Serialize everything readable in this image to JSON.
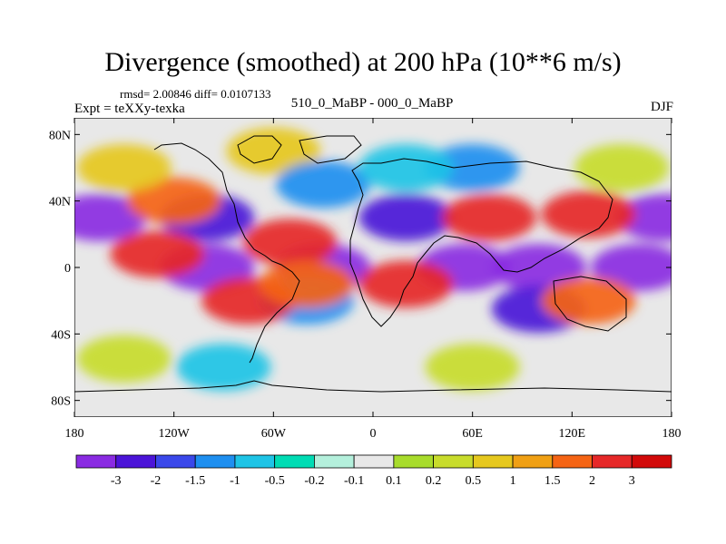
{
  "chart_data": {
    "type": "heatmap",
    "title": "Divergence (smoothed) at 200 hPa (10**6 m/s)",
    "stats_label": "rmsd= 2.00846 diff= 0.0107133",
    "experiment_label": "Expt = teXXy-texka",
    "comparison_label": "510_0_MaBP - 000_0_MaBP",
    "season_label": "DJF",
    "x_axis": {
      "range": [
        -180,
        180
      ],
      "tick_labels": [
        "180",
        "120W",
        "60W",
        "0",
        "60E",
        "120E",
        "180"
      ],
      "tick_values": [
        -180,
        -120,
        -60,
        0,
        60,
        120,
        180
      ]
    },
    "y_axis": {
      "range": [
        -90,
        90
      ],
      "tick_labels": [
        "80N",
        "40N",
        "0",
        "40S",
        "80S"
      ],
      "tick_values": [
        80,
        40,
        0,
        -40,
        -80
      ]
    },
    "colorbar": {
      "labels": [
        "-3",
        "-2",
        "-1.5",
        "-1",
        "-0.5",
        "-0.2",
        "-0.1",
        "0.1",
        "0.2",
        "0.5",
        "1",
        "1.5",
        "2",
        "3"
      ],
      "colors": [
        "#8a2be2",
        "#4b14d8",
        "#3a48ea",
        "#1e8ff0",
        "#1ec4e6",
        "#00dcb4",
        "#b4f0dc",
        "#e8e8e8",
        "#a8dc2c",
        "#c8dc2c",
        "#e6c81e",
        "#f0a014",
        "#f56414",
        "#e62828",
        "#d20a0a"
      ]
    },
    "field_features": [
      {
        "lon": -165,
        "lat": 30,
        "value": -3
      },
      {
        "lon": 175,
        "lat": 30,
        "value": -3
      },
      {
        "lon": -100,
        "lat": 0,
        "value": -3
      },
      {
        "lon": 55,
        "lat": 0,
        "value": -3
      },
      {
        "lon": 100,
        "lat": 0,
        "value": -3
      },
      {
        "lon": 160,
        "lat": 0,
        "value": -3
      },
      {
        "lon": -30,
        "lat": 0,
        "value": -3
      },
      {
        "lon": 20,
        "lat": 30,
        "value": -2
      },
      {
        "lon": -100,
        "lat": 30,
        "value": -2
      },
      {
        "lon": 100,
        "lat": -25,
        "value": -2
      },
      {
        "lon": -40,
        "lat": -20,
        "value": -1
      },
      {
        "lon": -130,
        "lat": 8,
        "value": 3
      },
      {
        "lon": -75,
        "lat": -20,
        "value": 3
      },
      {
        "lon": -50,
        "lat": 15,
        "value": 3
      },
      {
        "lon": 70,
        "lat": 30,
        "value": 3
      },
      {
        "lon": 20,
        "lat": -10,
        "value": 3
      },
      {
        "lon": 130,
        "lat": 32,
        "value": 3
      },
      {
        "lon": 130,
        "lat": -20,
        "value": 2
      },
      {
        "lon": -40,
        "lat": -10,
        "value": 2
      },
      {
        "lon": -120,
        "lat": 40,
        "value": 2
      },
      {
        "lon": 60,
        "lat": 60,
        "value": -1
      },
      {
        "lon": -60,
        "lat": 70,
        "value": 1
      },
      {
        "lon": -150,
        "lat": 60,
        "value": 1
      },
      {
        "lon": 150,
        "lat": 60,
        "value": 0.5
      },
      {
        "lon": -30,
        "lat": 50,
        "value": -1
      },
      {
        "lon": 20,
        "lat": 60,
        "value": -0.5
      },
      {
        "lon": -90,
        "lat": -60,
        "value": -0.5
      },
      {
        "lon": 60,
        "lat": -60,
        "value": 0.5
      },
      {
        "lon": -150,
        "lat": -55,
        "value": 0.5
      }
    ]
  }
}
